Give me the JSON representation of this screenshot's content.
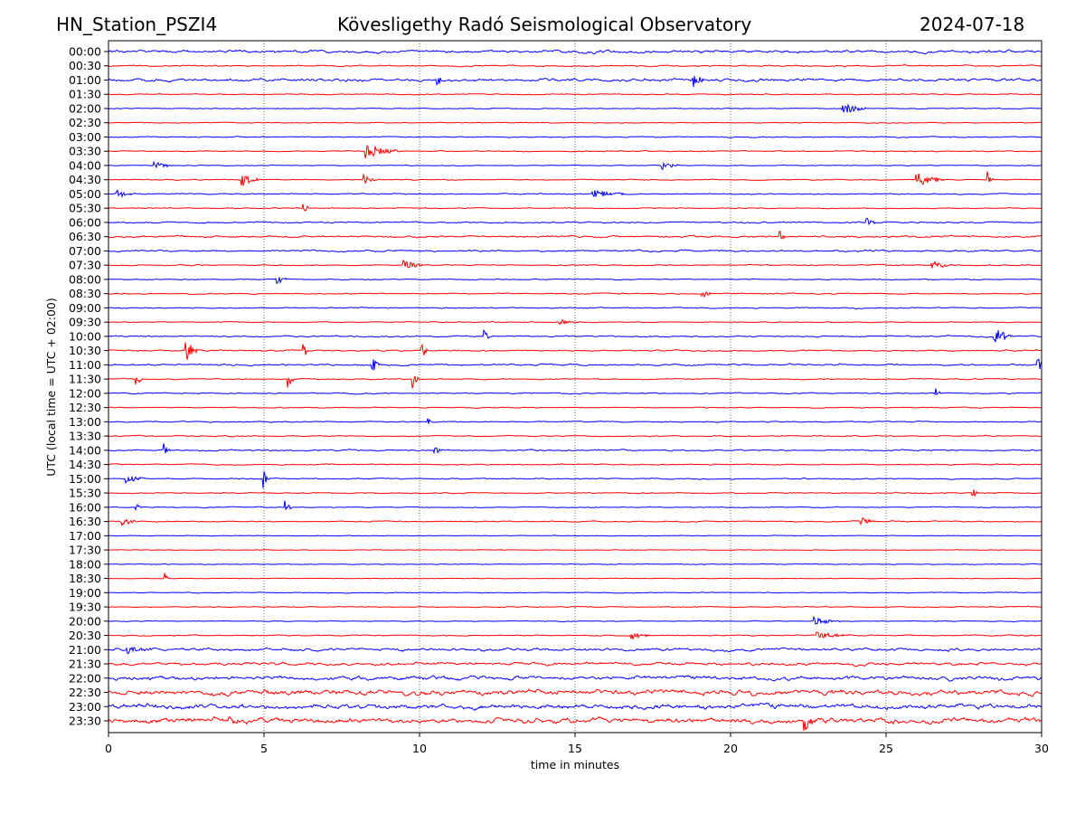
{
  "chart_data": {
    "type": "line",
    "title_left": "HN_Station_PSZI4",
    "title_center": "Kövesligethy Radó Seismological Observatory",
    "title_right": "2024-07-18",
    "xlabel": "time in minutes",
    "ylabel": "UTC (local time = UTC + 02:00)",
    "xlim": [
      0,
      30
    ],
    "x_ticks": [
      "0",
      "5",
      "10",
      "15",
      "20",
      "25",
      "30"
    ],
    "grid": "vertical dotted",
    "colors": [
      "#0000ff",
      "#ff0000"
    ],
    "rows": [
      "00:00",
      "00:30",
      "01:00",
      "01:30",
      "02:00",
      "02:30",
      "03:00",
      "03:30",
      "04:00",
      "04:30",
      "05:00",
      "05:30",
      "06:00",
      "06:30",
      "07:00",
      "07:30",
      "08:00",
      "08:30",
      "09:00",
      "09:30",
      "10:00",
      "10:30",
      "11:00",
      "11:30",
      "12:00",
      "12:30",
      "13:00",
      "13:30",
      "14:00",
      "14:30",
      "15:00",
      "15:30",
      "16:00",
      "16:30",
      "17:00",
      "17:30",
      "18:00",
      "18:30",
      "19:00",
      "19:30",
      "20:00",
      "20:30",
      "21:00",
      "21:30",
      "22:00",
      "22:30",
      "23:00",
      "23:30"
    ],
    "noise_level": [
      0.3,
      0.15,
      0.3,
      0.1,
      0.08,
      0.08,
      0.1,
      0.1,
      0.08,
      0.1,
      0.12,
      0.1,
      0.15,
      0.2,
      0.18,
      0.12,
      0.1,
      0.12,
      0.12,
      0.1,
      0.15,
      0.15,
      0.18,
      0.12,
      0.12,
      0.1,
      0.12,
      0.12,
      0.15,
      0.12,
      0.12,
      0.12,
      0.1,
      0.12,
      0.06,
      0.06,
      0.08,
      0.06,
      0.08,
      0.1,
      0.08,
      0.12,
      0.3,
      0.3,
      0.4,
      0.55,
      0.5,
      0.55
    ],
    "events": [
      [
        2,
        18.8,
        0.6,
        0.3
      ],
      [
        2,
        10.6,
        0.4,
        0.2
      ],
      [
        4,
        23.6,
        0.5,
        0.7
      ],
      [
        7,
        8.3,
        0.6,
        1.0
      ],
      [
        8,
        1.5,
        0.3,
        0.5
      ],
      [
        8,
        17.8,
        0.3,
        0.5
      ],
      [
        9,
        4.3,
        0.5,
        0.5
      ],
      [
        9,
        8.2,
        0.4,
        0.4
      ],
      [
        9,
        26,
        0.5,
        0.8
      ],
      [
        9,
        28.3,
        0.6,
        0.1
      ],
      [
        10,
        0.3,
        0.4,
        0.4
      ],
      [
        10,
        15.6,
        0.3,
        1.0
      ],
      [
        11,
        6.3,
        0.6,
        0.1
      ],
      [
        12,
        24.4,
        0.4,
        0.2
      ],
      [
        13,
        21.6,
        0.4,
        0.1
      ],
      [
        15,
        9.5,
        0.4,
        0.6
      ],
      [
        15,
        26.5,
        0.3,
        0.6
      ],
      [
        16,
        5.4,
        0.5,
        0.3
      ],
      [
        17,
        19.1,
        0.4,
        0.2
      ],
      [
        19,
        14.5,
        0.2,
        0.6
      ],
      [
        20,
        28.5,
        0.7,
        0.5
      ],
      [
        20,
        12.1,
        0.5,
        0.1
      ],
      [
        21,
        2.5,
        0.8,
        0.3
      ],
      [
        21,
        10.1,
        0.6,
        0.1
      ],
      [
        21,
        6.3,
        0.5,
        0.1
      ],
      [
        22,
        8.5,
        0.7,
        0.2
      ],
      [
        22,
        29.9,
        0.5,
        0.2
      ],
      [
        23,
        5.8,
        0.8,
        0.1
      ],
      [
        23,
        9.8,
        0.8,
        0.1
      ],
      [
        23,
        0.9,
        0.6,
        0.1
      ],
      [
        24,
        26.6,
        0.4,
        0.1
      ],
      [
        26,
        10.3,
        0.3,
        0.1
      ],
      [
        28,
        1.8,
        0.6,
        0.2
      ],
      [
        28,
        10.5,
        0.3,
        0.2
      ],
      [
        30,
        5.0,
        0.7,
        0.1
      ],
      [
        30,
        0.6,
        0.3,
        0.5
      ],
      [
        31,
        27.8,
        0.5,
        0.1
      ],
      [
        32,
        5.7,
        1.0,
        0.1
      ],
      [
        32,
        0.9,
        0.3,
        0.1
      ],
      [
        33,
        0.4,
        0.4,
        0.4
      ],
      [
        33,
        24.2,
        0.3,
        0.4
      ],
      [
        37,
        1.8,
        0.5,
        0.1
      ],
      [
        40,
        22.7,
        0.3,
        0.8
      ],
      [
        41,
        16.8,
        0.3,
        0.6
      ],
      [
        41,
        22.8,
        0.3,
        1.0
      ],
      [
        42,
        0.6,
        0.3,
        0.8
      ],
      [
        47,
        22.4,
        0.8,
        0.3
      ],
      [
        47,
        3.9,
        0.5,
        0.3
      ]
    ]
  }
}
